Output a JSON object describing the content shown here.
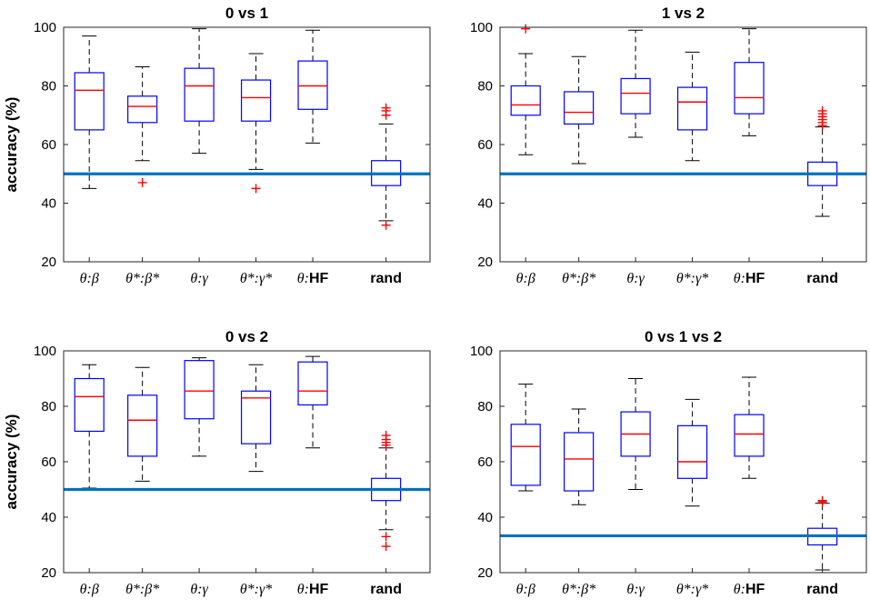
{
  "colors": {
    "box": "#0000ff",
    "median": "#ff0000",
    "outlier": "#ff0000",
    "whisker": "#000000",
    "chance_line": "#0072bd",
    "axis": "#262626",
    "grid": "#d9d9d9"
  },
  "chart_data": [
    {
      "type": "box",
      "title": "0 vs 1",
      "ylabel": "accuracy (%)",
      "ylim": [
        20,
        100
      ],
      "yticks": [
        20,
        40,
        60,
        80,
        100
      ],
      "chance_level": 50,
      "categories": [
        {
          "label": "θ:β",
          "label_style": "italic"
        },
        {
          "label": "θ*:β*",
          "label_style": "italic"
        },
        {
          "label": "θ:γ",
          "label_style": "italic"
        },
        {
          "label": "θ*:γ*",
          "label_style": "italic"
        },
        {
          "label": "θ:HF",
          "label_style": "mixed"
        },
        {
          "label": "rand",
          "label_style": "bold"
        }
      ],
      "boxes": [
        {
          "whisker_low": 45,
          "q1": 65,
          "median": 78.5,
          "q3": 84.5,
          "whisker_high": 97,
          "outliers": []
        },
        {
          "whisker_low": 54.5,
          "q1": 67.5,
          "median": 73,
          "q3": 76.5,
          "whisker_high": 86.5,
          "outliers": [
            47
          ]
        },
        {
          "whisker_low": 57,
          "q1": 68,
          "median": 80,
          "q3": 86,
          "whisker_high": 99.5,
          "outliers": []
        },
        {
          "whisker_low": 51.5,
          "q1": 68,
          "median": 76,
          "q3": 82,
          "whisker_high": 91,
          "outliers": [
            45
          ]
        },
        {
          "whisker_low": 60.5,
          "q1": 72,
          "median": 80,
          "q3": 88.5,
          "whisker_high": 99,
          "outliers": []
        },
        {
          "whisker_low": 34,
          "q1": 46,
          "median": 50,
          "q3": 54.5,
          "whisker_high": 67,
          "outliers": [
            32.5,
            70,
            71.5,
            72.5
          ]
        }
      ]
    },
    {
      "type": "box",
      "title": "1 vs 2",
      "ylabel": "",
      "ylim": [
        20,
        100
      ],
      "yticks": [
        20,
        40,
        60,
        80,
        100
      ],
      "chance_level": 50,
      "categories": [
        {
          "label": "θ:β",
          "label_style": "italic"
        },
        {
          "label": "θ*:β*",
          "label_style": "italic"
        },
        {
          "label": "θ:γ",
          "label_style": "italic"
        },
        {
          "label": "θ*:γ*",
          "label_style": "italic"
        },
        {
          "label": "θ:HF",
          "label_style": "mixed"
        },
        {
          "label": "rand",
          "label_style": "bold"
        }
      ],
      "boxes": [
        {
          "whisker_low": 56.5,
          "q1": 70,
          "median": 73.5,
          "q3": 80,
          "whisker_high": 91,
          "outliers": [
            99.5
          ]
        },
        {
          "whisker_low": 53.5,
          "q1": 67,
          "median": 71,
          "q3": 78,
          "whisker_high": 90,
          "outliers": []
        },
        {
          "whisker_low": 62.5,
          "q1": 70.5,
          "median": 77.5,
          "q3": 82.5,
          "whisker_high": 99,
          "outliers": []
        },
        {
          "whisker_low": 54.5,
          "q1": 65,
          "median": 74.5,
          "q3": 79.5,
          "whisker_high": 91.5,
          "outliers": []
        },
        {
          "whisker_low": 63,
          "q1": 70.5,
          "median": 76,
          "q3": 88,
          "whisker_high": 99.5,
          "outliers": []
        },
        {
          "whisker_low": 35.5,
          "q1": 46,
          "median": 50,
          "q3": 54,
          "whisker_high": 66,
          "outliers": [
            66.5,
            67.5,
            68.5,
            69.5,
            70.5,
            71.5
          ]
        }
      ]
    },
    {
      "type": "box",
      "title": "0 vs 2",
      "ylabel": "accuracy (%)",
      "ylim": [
        20,
        100
      ],
      "yticks": [
        20,
        40,
        60,
        80,
        100
      ],
      "chance_level": 50,
      "categories": [
        {
          "label": "θ:β",
          "label_style": "italic"
        },
        {
          "label": "θ*:β*",
          "label_style": "italic"
        },
        {
          "label": "θ:γ",
          "label_style": "italic"
        },
        {
          "label": "θ*:γ*",
          "label_style": "italic"
        },
        {
          "label": "θ:HF",
          "label_style": "mixed"
        },
        {
          "label": "rand",
          "label_style": "bold"
        }
      ],
      "boxes": [
        {
          "whisker_low": 50.5,
          "q1": 71,
          "median": 83.5,
          "q3": 90,
          "whisker_high": 95,
          "outliers": []
        },
        {
          "whisker_low": 53,
          "q1": 62,
          "median": 75,
          "q3": 84,
          "whisker_high": 94,
          "outliers": []
        },
        {
          "whisker_low": 62,
          "q1": 75.5,
          "median": 85.5,
          "q3": 96.5,
          "whisker_high": 97.5,
          "outliers": []
        },
        {
          "whisker_low": 56.5,
          "q1": 66.5,
          "median": 83,
          "q3": 85.5,
          "whisker_high": 95,
          "outliers": []
        },
        {
          "whisker_low": 65,
          "q1": 80.5,
          "median": 85.5,
          "q3": 96,
          "whisker_high": 98,
          "outliers": []
        },
        {
          "whisker_low": 35.5,
          "q1": 46,
          "median": 50,
          "q3": 54,
          "whisker_high": 65,
          "outliers": [
            29.5,
            33,
            66,
            67,
            68,
            69.5
          ]
        }
      ]
    },
    {
      "type": "box",
      "title": "0 vs 1 vs 2",
      "ylabel": "",
      "ylim": [
        20,
        100
      ],
      "yticks": [
        20,
        40,
        60,
        80,
        100
      ],
      "chance_level": 33.3,
      "categories": [
        {
          "label": "θ:β",
          "label_style": "italic"
        },
        {
          "label": "θ*:β*",
          "label_style": "italic"
        },
        {
          "label": "θ:γ",
          "label_style": "italic"
        },
        {
          "label": "θ*:γ*",
          "label_style": "italic"
        },
        {
          "label": "θ:HF",
          "label_style": "mixed"
        },
        {
          "label": "rand",
          "label_style": "bold"
        }
      ],
      "boxes": [
        {
          "whisker_low": 49.5,
          "q1": 51.5,
          "median": 65.5,
          "q3": 73.5,
          "whisker_high": 88,
          "outliers": []
        },
        {
          "whisker_low": 44.5,
          "q1": 49.5,
          "median": 61,
          "q3": 70.5,
          "whisker_high": 79,
          "outliers": []
        },
        {
          "whisker_low": 50,
          "q1": 62,
          "median": 70,
          "q3": 78,
          "whisker_high": 90,
          "outliers": []
        },
        {
          "whisker_low": 44,
          "q1": 54,
          "median": 60,
          "q3": 73,
          "whisker_high": 82.5,
          "outliers": []
        },
        {
          "whisker_low": 54,
          "q1": 62,
          "median": 70,
          "q3": 77,
          "whisker_high": 90.5,
          "outliers": []
        },
        {
          "whisker_low": 21,
          "q1": 30,
          "median": 33,
          "q3": 36,
          "whisker_high": 45,
          "outliers": [
            45.5,
            46
          ]
        }
      ]
    }
  ]
}
